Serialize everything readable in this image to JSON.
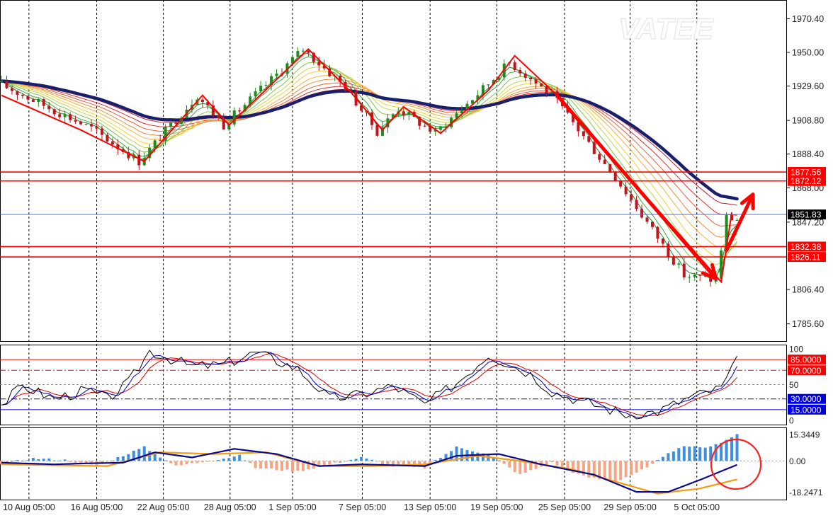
{
  "watermark": "VATEE",
  "colors": {
    "background": "#ffffff",
    "grid": "#000000",
    "bull": "#1e8c1e",
    "bear": "#c0141e",
    "ma_slow": "#1a1f6b",
    "level_line": "#ff0000",
    "current_line": "#3c64c8",
    "blue_level": "#0000dd",
    "macd_pos": "#3d8fde",
    "macd_neg": "#f4a482",
    "signal": "#f39c12"
  },
  "chart_data": [
    {
      "type": "line",
      "pane": "price",
      "ylim": [
        1776,
        1980
      ],
      "y_ticks": [
        "1970.40",
        "1950.00",
        "1929.60",
        "1908.80",
        "1888.40",
        "1868.00",
        "1847.20",
        "1806.40",
        "1785.60"
      ],
      "x_ticks": [
        "10 Aug 05:00",
        "16 Aug 05:00",
        "22 Aug 05:00",
        "28 Aug 05:00",
        "1 Sep 05:00",
        "7 Sep 05:00",
        "13 Sep 05:00",
        "19 Sep 05:00",
        "25 Sep 05:00",
        "29 Sep 05:00",
        "5 Oct 05:00"
      ],
      "x_tick_index": [
        5.2,
        18.0,
        30.6,
        43.2,
        55.0,
        68.2,
        81.0,
        93.6,
        106.4,
        118.8,
        131.4
      ],
      "bar_count": 140,
      "price_path": [
        [
          0,
          1932
        ],
        [
          18,
          1904
        ],
        [
          27,
          1884
        ],
        [
          38,
          1924
        ],
        [
          43,
          1906
        ],
        [
          58,
          1952
        ],
        [
          66,
          1929
        ],
        [
          72,
          1902
        ],
        [
          76,
          1916
        ],
        [
          83,
          1901
        ],
        [
          92,
          1928
        ],
        [
          97,
          1944
        ],
        [
          105,
          1924
        ],
        [
          118,
          1870
        ],
        [
          130,
          1815
        ],
        [
          136,
          1812
        ],
        [
          138,
          1850
        ],
        [
          140,
          1849
        ]
      ],
      "price_noise": 3.5,
      "ema_ribbon": [
        {
          "period": 3,
          "color": "#1a8a2a"
        },
        {
          "period": 5,
          "color": "#3fa83a"
        },
        {
          "period": 8,
          "color": "#7ec84a"
        },
        {
          "period": 11,
          "color": "#c6d64a"
        },
        {
          "period": 14,
          "color": "#f2d23a"
        },
        {
          "period": 18,
          "color": "#f6b23a"
        },
        {
          "period": 22,
          "color": "#f48a3a"
        },
        {
          "period": 27,
          "color": "#ee5e3a"
        },
        {
          "period": 33,
          "color": "#e03030"
        },
        {
          "period": 40,
          "color": "#c01f2e"
        }
      ],
      "slow_ma_period": 45,
      "zigzag": [
        [
          0,
          1924
        ],
        [
          10,
          1910
        ],
        [
          15,
          1903
        ],
        [
          27,
          1884
        ],
        [
          38,
          1924
        ],
        [
          43,
          1906
        ],
        [
          58,
          1952
        ],
        [
          66,
          1926
        ],
        [
          72,
          1903
        ],
        [
          76,
          1917
        ],
        [
          83,
          1901
        ],
        [
          92,
          1927
        ],
        [
          97,
          1948
        ],
        [
          105,
          1924
        ],
        [
          136,
          1811
        ],
        [
          138,
          1853
        ]
      ],
      "annotation_arrows": [
        {
          "from": [
            105,
            1924
          ],
          "to": [
            135,
            1813
          ]
        },
        {
          "from": [
            137,
            1830
          ],
          "to": [
            142,
            1864
          ]
        }
      ],
      "levels": [
        {
          "value": 1877.56,
          "label": "1877.56"
        },
        {
          "value": 1872.12,
          "label": "1872.12"
        },
        {
          "value": 1832.38,
          "label": "1832.38"
        },
        {
          "value": 1826.11,
          "label": "1826.11"
        }
      ],
      "current_price": 1851.83,
      "current_price_label": "1851.83"
    },
    {
      "type": "line",
      "pane": "stochastic",
      "ylim": [
        0,
        100
      ],
      "y_ticks": [
        "100",
        "50",
        "0"
      ],
      "levels": [
        {
          "value": 85,
          "label": "85.0000"
        },
        {
          "value": 70,
          "label": "70.0000"
        },
        {
          "value": 30,
          "label": "30.0000"
        },
        {
          "value": 15,
          "label": "15.0000"
        }
      ],
      "series_colors": [
        "#000000",
        "#0000cc",
        "#dd0000"
      ],
      "path": [
        [
          0,
          22
        ],
        [
          4,
          48
        ],
        [
          10,
          30
        ],
        [
          16,
          42
        ],
        [
          20,
          30
        ],
        [
          24,
          52
        ],
        [
          28,
          97
        ],
        [
          36,
          75
        ],
        [
          42,
          78
        ],
        [
          48,
          95
        ],
        [
          56,
          72
        ],
        [
          62,
          30
        ],
        [
          68,
          36
        ],
        [
          74,
          48
        ],
        [
          80,
          22
        ],
        [
          86,
          52
        ],
        [
          92,
          92
        ],
        [
          100,
          65
        ],
        [
          104,
          40
        ],
        [
          112,
          22
        ],
        [
          118,
          8
        ],
        [
          124,
          12
        ],
        [
          130,
          32
        ],
        [
          136,
          45
        ],
        [
          140,
          95
        ]
      ]
    },
    {
      "type": "bar",
      "pane": "macd",
      "ylim": [
        -20,
        17
      ],
      "y_ticks": [
        "15.3449",
        "0.00",
        "-18.2471"
      ],
      "histogram": [
        [
          0,
          -1.5
        ],
        [
          6,
          1.5
        ],
        [
          12,
          0.5
        ],
        [
          18,
          -3
        ],
        [
          22,
          2
        ],
        [
          27,
          8
        ],
        [
          33,
          -3
        ],
        [
          40,
          0.5
        ],
        [
          45,
          3
        ],
        [
          48,
          -4
        ],
        [
          56,
          -6
        ],
        [
          62,
          -2
        ],
        [
          68,
          2
        ],
        [
          74,
          -3
        ],
        [
          80,
          -4
        ],
        [
          86,
          8
        ],
        [
          92,
          4
        ],
        [
          98,
          -8
        ],
        [
          104,
          -1
        ],
        [
          110,
          -9
        ],
        [
          116,
          -12
        ],
        [
          122,
          -4
        ],
        [
          128,
          8
        ],
        [
          134,
          8
        ],
        [
          140,
          17
        ]
      ],
      "macd_path": [
        [
          0,
          -1
        ],
        [
          10,
          -2
        ],
        [
          15,
          -1.5
        ],
        [
          23,
          -1
        ],
        [
          29,
          5
        ],
        [
          36,
          2
        ],
        [
          44,
          7
        ],
        [
          52,
          4
        ],
        [
          60,
          -3
        ],
        [
          68,
          -2
        ],
        [
          74,
          -2.5
        ],
        [
          80,
          -3
        ],
        [
          86,
          3
        ],
        [
          94,
          4
        ],
        [
          102,
          -2
        ],
        [
          112,
          -8
        ],
        [
          120,
          -18
        ],
        [
          126,
          -18
        ],
        [
          132,
          -11
        ],
        [
          140,
          -1
        ]
      ],
      "signal_path": [
        [
          0,
          -2
        ],
        [
          10,
          -2.5
        ],
        [
          20,
          -3
        ],
        [
          30,
          5
        ],
        [
          40,
          4
        ],
        [
          50,
          5
        ],
        [
          60,
          -3
        ],
        [
          70,
          -3
        ],
        [
          80,
          -2
        ],
        [
          90,
          3
        ],
        [
          98,
          0
        ],
        [
          108,
          -5
        ],
        [
          116,
          -12
        ],
        [
          124,
          -19
        ],
        [
          132,
          -16
        ],
        [
          140,
          -10
        ]
      ]
    }
  ]
}
